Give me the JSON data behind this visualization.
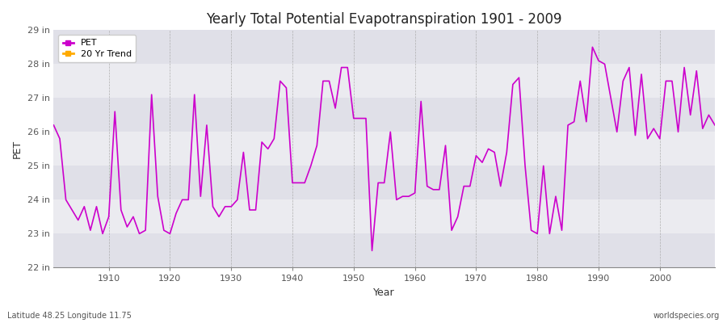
{
  "title": "Yearly Total Potential Evapotranspiration 1901 - 2009",
  "xlabel": "Year",
  "ylabel": "PET",
  "lat_lon_label": "Latitude 48.25 Longitude 11.75",
  "watermark": "worldspecies.org",
  "ylim": [
    22,
    29
  ],
  "yticks": [
    22,
    23,
    24,
    25,
    26,
    27,
    28,
    29
  ],
  "xticks": [
    1910,
    1920,
    1930,
    1940,
    1950,
    1960,
    1970,
    1980,
    1990,
    2000
  ],
  "line_color": "#cc00cc",
  "trend_color": "#ffaa00",
  "bg_color": "#ffffff",
  "plot_bg_color": "#e8e8e8",
  "band_colors": [
    "#e0e0e8",
    "#ebebf0"
  ],
  "years": [
    1901,
    1902,
    1903,
    1904,
    1905,
    1906,
    1907,
    1908,
    1909,
    1910,
    1911,
    1912,
    1913,
    1914,
    1915,
    1916,
    1917,
    1918,
    1919,
    1920,
    1921,
    1922,
    1923,
    1924,
    1925,
    1926,
    1927,
    1928,
    1929,
    1930,
    1931,
    1932,
    1933,
    1934,
    1935,
    1936,
    1937,
    1938,
    1939,
    1940,
    1941,
    1942,
    1943,
    1944,
    1945,
    1946,
    1947,
    1948,
    1949,
    1950,
    1951,
    1952,
    1953,
    1954,
    1955,
    1956,
    1957,
    1958,
    1959,
    1960,
    1961,
    1962,
    1963,
    1964,
    1965,
    1966,
    1967,
    1968,
    1969,
    1970,
    1971,
    1972,
    1973,
    1974,
    1975,
    1976,
    1977,
    1978,
    1979,
    1980,
    1981,
    1982,
    1983,
    1984,
    1985,
    1986,
    1987,
    1988,
    1989,
    1990,
    1991,
    1992,
    1993,
    1994,
    1995,
    1996,
    1997,
    1998,
    1999,
    2000,
    2001,
    2002,
    2003,
    2004,
    2005,
    2006,
    2007,
    2008,
    2009
  ],
  "values": [
    26.2,
    25.8,
    24.0,
    23.7,
    23.4,
    23.8,
    23.1,
    23.8,
    23.0,
    23.5,
    26.6,
    23.7,
    23.2,
    23.5,
    23.0,
    23.1,
    27.1,
    24.1,
    23.1,
    23.0,
    23.6,
    24.0,
    24.0,
    27.1,
    24.1,
    26.2,
    23.8,
    23.5,
    23.8,
    23.8,
    24.0,
    25.4,
    23.7,
    23.7,
    25.7,
    25.5,
    25.8,
    27.5,
    27.3,
    24.5,
    24.5,
    24.5,
    25.0,
    25.6,
    27.5,
    27.5,
    26.7,
    27.9,
    27.9,
    26.4,
    26.4,
    26.4,
    22.5,
    24.5,
    24.5,
    26.0,
    24.0,
    24.1,
    24.1,
    24.2,
    26.9,
    24.4,
    24.3,
    24.3,
    25.6,
    23.1,
    23.5,
    24.4,
    24.4,
    25.3,
    25.1,
    25.5,
    25.4,
    24.4,
    25.4,
    27.4,
    27.6,
    25.0,
    23.1,
    23.0,
    25.0,
    23.0,
    24.1,
    23.1,
    26.2,
    26.3,
    27.5,
    26.3,
    28.5,
    28.1,
    28.0,
    27.0,
    26.0,
    27.5,
    27.9,
    25.9,
    27.7,
    25.8,
    26.1,
    25.8,
    27.5,
    27.5,
    26.0,
    27.9,
    26.5,
    27.8,
    26.1,
    26.5,
    26.2
  ]
}
